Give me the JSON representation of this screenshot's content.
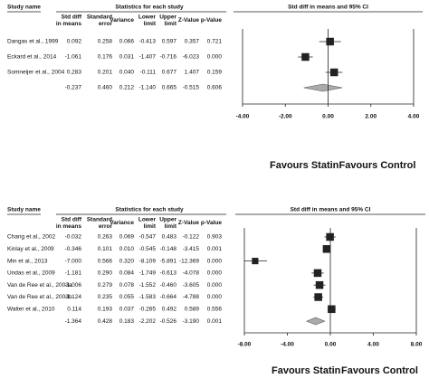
{
  "chart_data": [
    {
      "type": "forest",
      "study_header": "Study name",
      "stats_header": "Statistics for each study",
      "plot_header": "Std diff in means and 95% CI",
      "columns": [
        "Std diff in means",
        "Standard error",
        "Variance",
        "Lower limit",
        "Upper limit",
        "Z-Value",
        "p-Value"
      ],
      "rows": [
        {
          "study": "Dangas et al., 1999",
          "values": [
            0.092,
            0.258,
            0.066,
            -0.413,
            0.597,
            0.357,
            0.721
          ],
          "value_labels": [
            "0.092",
            "0.258",
            "0.066",
            "-0.413",
            "0.597",
            "0.357",
            "0.721"
          ]
        },
        {
          "study": "Eckard et al., 2014",
          "values": [
            -1.061,
            0.176,
            0.031,
            -1.407,
            -0.716,
            -6.023,
            0
          ],
          "value_labels": [
            "-1.061",
            "0.176",
            "0.031",
            "-1.407",
            "-0.716",
            "-6.023",
            "0.000"
          ]
        },
        {
          "study": "Somneijer et al., 2004",
          "values": [
            0.283,
            0.201,
            0.04,
            -0.111,
            0.677,
            1.407,
            0.159
          ],
          "value_labels": [
            "0.283",
            "0.201",
            "0.040",
            "-0.111",
            "0.677",
            "1.407",
            "0.159"
          ]
        }
      ],
      "summary": {
        "values": [
          -0.237,
          0.46,
          0.212,
          -1.14,
          0.665,
          -0.515,
          0.606
        ],
        "value_labels": [
          "-0.237",
          "0.460",
          "0.212",
          "-1.140",
          "0.665",
          "-0.515",
          "0.606"
        ]
      },
      "xlim": [
        -4,
        4
      ],
      "xticks": [
        {
          "value": -4,
          "label": "-4.00"
        },
        {
          "value": -2,
          "label": "-2.00"
        },
        {
          "value": 0,
          "label": "0.00"
        },
        {
          "value": 2,
          "label": "2.00"
        },
        {
          "value": 4,
          "label": "4.00"
        }
      ],
      "left_label": "Favours Statin",
      "right_label": "Favours Control",
      "color": "#222222",
      "summary_color": "#aaaaaa"
    },
    {
      "type": "forest",
      "study_header": "Study name",
      "stats_header": "Statistics for each study",
      "plot_header": "Std diff in means and 95% CI",
      "columns": [
        "Std diff in means",
        "Standard error",
        "Variance",
        "Lower limit",
        "Upper limit",
        "Z-Value",
        "p-Value"
      ],
      "rows": [
        {
          "study": "Chang et al., 2002",
          "values": [
            -0.032,
            0.263,
            0.069,
            -0.547,
            0.483,
            -0.122,
            0.903
          ],
          "value_labels": [
            "-0.032",
            "0.263",
            "0.069",
            "-0.547",
            "0.483",
            "-0.122",
            "0.903"
          ]
        },
        {
          "study": "Kinlay et al., 2009",
          "values": [
            -0.346,
            0.101,
            0.01,
            -0.545,
            -0.148,
            -3.415,
            0.001
          ],
          "value_labels": [
            "-0.346",
            "0.101",
            "0.010",
            "-0.545",
            "-0.148",
            "-3.415",
            "0.001"
          ]
        },
        {
          "study": "Min et al., 2013",
          "values": [
            -7,
            0.566,
            0.32,
            -8.109,
            -5.891,
            -12.369,
            0
          ],
          "value_labels": [
            "-7.000",
            "0.566",
            "0.320",
            "-8.109",
            "-5.891",
            "-12.369",
            "0.000"
          ]
        },
        {
          "study": "Undas et al., 2009",
          "values": [
            -1.181,
            0.29,
            0.084,
            -1.749,
            -0.613,
            -4.078,
            0
          ],
          "value_labels": [
            "-1.181",
            "0.290",
            "0.084",
            "-1.749",
            "-0.613",
            "-4.078",
            "0.000"
          ]
        },
        {
          "study": "Van de Ree et al., 2003a",
          "values": [
            -1.006,
            0.279,
            0.078,
            -1.552,
            -0.46,
            -3.605,
            0
          ],
          "value_labels": [
            "-1.006",
            "0.279",
            "0.078",
            "-1.552",
            "-0.460",
            "-3.605",
            "0.000"
          ]
        },
        {
          "study": "Van de Ree et al., 2003b",
          "values": [
            -1.124,
            0.235,
            0.055,
            -1.583,
            -0.664,
            -4.788,
            0
          ],
          "value_labels": [
            "-1.124",
            "0.235",
            "0.055",
            "-1.583",
            "-0.664",
            "-4.788",
            "0.000"
          ]
        },
        {
          "study": "Walter et al., 2010",
          "values": [
            0.114,
            0.193,
            0.037,
            -0.265,
            0.492,
            0.589,
            0.556
          ],
          "value_labels": [
            "0.114",
            "0.193",
            "0.037",
            "-0.265",
            "0.492",
            "0.589",
            "0.556"
          ]
        }
      ],
      "summary": {
        "values": [
          -1.364,
          0.428,
          0.183,
          -2.202,
          -0.526,
          -3.19,
          0.001
        ],
        "value_labels": [
          "-1.364",
          "0.428",
          "0.183",
          "-2.202",
          "-0.526",
          "-3.190",
          "0.001"
        ]
      },
      "xlim": [
        -8,
        8
      ],
      "xticks": [
        {
          "value": -8,
          "label": "-8.00"
        },
        {
          "value": -4,
          "label": "-4.00"
        },
        {
          "value": 0,
          "label": "0.00"
        },
        {
          "value": 4,
          "label": "4.00"
        },
        {
          "value": 8,
          "label": "8.00"
        }
      ],
      "left_label": "Favours Statin",
      "right_label": "Favours Control",
      "color": "#222222",
      "summary_color": "#aaaaaa"
    }
  ]
}
